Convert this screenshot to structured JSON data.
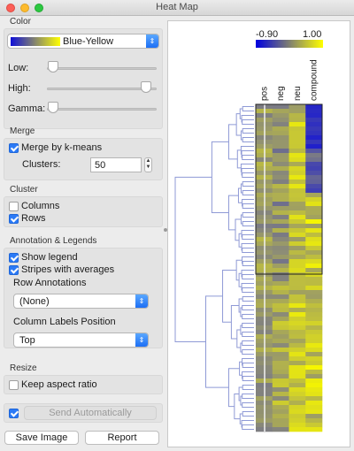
{
  "window": {
    "title": "Heat Map"
  },
  "color": {
    "section": "Color",
    "palette": "Blue-Yellow",
    "low_label": "Low:",
    "high_label": "High:",
    "gamma_label": "Gamma:",
    "low_value": 0.0,
    "high_value": 1.0,
    "gamma_value": 0.0
  },
  "merge": {
    "section": "Merge",
    "kmeans_label": "Merge by k-means",
    "kmeans_checked": true,
    "clusters_label": "Clusters:",
    "clusters_value": "50"
  },
  "cluster": {
    "section": "Cluster",
    "columns_label": "Columns",
    "columns_checked": false,
    "rows_label": "Rows",
    "rows_checked": true
  },
  "annotation": {
    "section": "Annotation & Legends",
    "show_legend_label": "Show legend",
    "show_legend_checked": true,
    "stripes_label": "Stripes with averages",
    "stripes_checked": true,
    "row_annotations_label": "Row Annotations",
    "row_annotations_value": "(None)",
    "col_labels_pos_label": "Column Labels Position",
    "col_labels_pos_value": "Top"
  },
  "resize": {
    "section": "Resize",
    "keep_aspect_label": "Keep aspect ratio",
    "keep_aspect_checked": false
  },
  "footer": {
    "auto_send_checked": true,
    "send_auto_label": "Send Automatically",
    "save_image_label": "Save Image",
    "report_label": "Report"
  },
  "legend": {
    "min": "-0.90",
    "max": "1.00",
    "low_color": "#0000e0",
    "high_color": "#ffff00"
  },
  "heatmap": {
    "columns": [
      "pos",
      "neg",
      "neu",
      "compound"
    ],
    "selected_rows": 33
  },
  "colors": {
    "accent": "#2b7af6",
    "low": "#1a1ad0",
    "mid": "#8f8f74",
    "high": "#f6f600"
  }
}
